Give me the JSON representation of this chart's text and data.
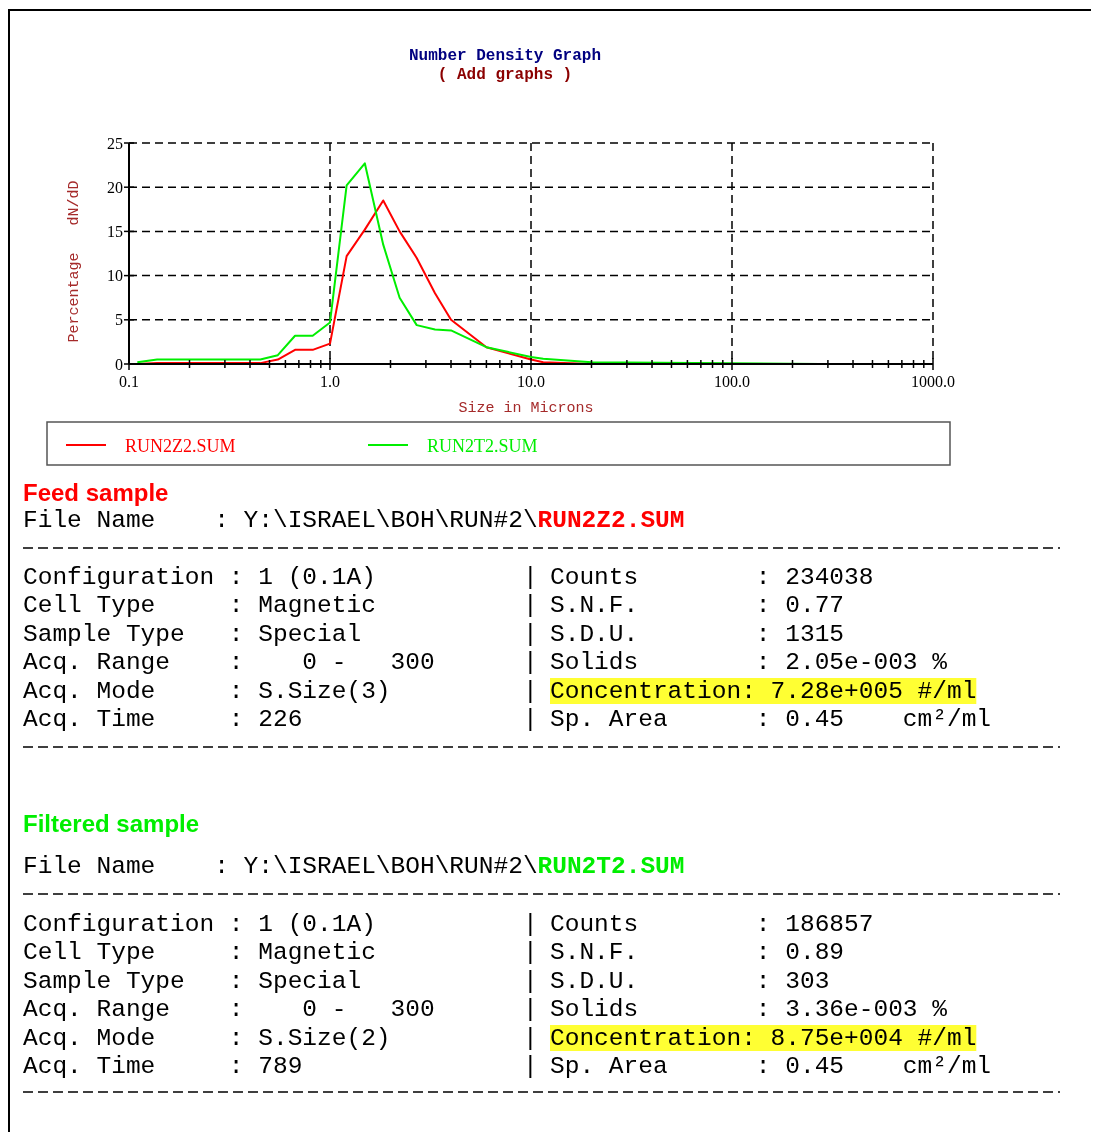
{
  "chart_data": {
    "type": "line",
    "title": "Number Density Graph",
    "subtitle": "( Add graphs )",
    "xlabel": "Size in Microns",
    "ylabel": "Percentage   dN/dD",
    "log": "x",
    "x": [
      0.11,
      0.138,
      0.45,
      0.55,
      0.67,
      0.82,
      1.0,
      1.21,
      1.49,
      1.84,
      2.22,
      2.7,
      3.33,
      4.0,
      6.0,
      10,
      11.5,
      20,
      275
    ],
    "series": [
      {
        "name": "RUN2Z2.SUM",
        "color": "#ff0000",
        "values": [
          0,
          0.1,
          0.1,
          0.5,
          1.6,
          1.6,
          2.3,
          12.2,
          15.2,
          18.5,
          15.0,
          12.0,
          8.0,
          5.0,
          1.9,
          0.5,
          0.2,
          0,
          0
        ]
      },
      {
        "name": "RUN2T2.SUM",
        "color": "#00ee00",
        "values": [
          0.2,
          0.5,
          0.5,
          1.0,
          3.2,
          3.2,
          4.7,
          20.2,
          22.7,
          13.5,
          7.5,
          4.4,
          3.9,
          3.8,
          1.9,
          0.8,
          0.6,
          0.2,
          0
        ]
      }
    ],
    "xlim": [
      0.1,
      1000
    ],
    "ylim": [
      0,
      25
    ],
    "xticks": [
      {
        "value": 0.1,
        "label": "0.1"
      },
      {
        "value": 0.2,
        "label": null
      },
      {
        "value": 0.3,
        "label": null
      },
      {
        "value": 0.4,
        "label": null
      },
      {
        "value": 0.5,
        "label": null
      },
      {
        "value": 0.6,
        "label": null
      },
      {
        "value": 0.7,
        "label": null
      },
      {
        "value": 0.8,
        "label": null
      },
      {
        "value": 0.9,
        "label": null
      },
      {
        "value": 1,
        "label": "1.0"
      },
      {
        "value": 2,
        "label": null
      },
      {
        "value": 3,
        "label": null
      },
      {
        "value": 4,
        "label": null
      },
      {
        "value": 5,
        "label": null
      },
      {
        "value": 6,
        "label": null
      },
      {
        "value": 7,
        "label": null
      },
      {
        "value": 8,
        "label": null
      },
      {
        "value": 9,
        "label": null
      },
      {
        "value": 10,
        "label": "10.0"
      },
      {
        "value": 20,
        "label": null
      },
      {
        "value": 30,
        "label": null
      },
      {
        "value": 40,
        "label": null
      },
      {
        "value": 50,
        "label": null
      },
      {
        "value": 60,
        "label": null
      },
      {
        "value": 70,
        "label": null
      },
      {
        "value": 80,
        "label": null
      },
      {
        "value": 90,
        "label": null
      },
      {
        "value": 100,
        "label": "100.0"
      },
      {
        "value": 200,
        "label": null
      },
      {
        "value": 300,
        "label": null
      },
      {
        "value": 400,
        "label": null
      },
      {
        "value": 500,
        "label": null
      },
      {
        "value": 600,
        "label": null
      },
      {
        "value": 700,
        "label": null
      },
      {
        "value": 800,
        "label": null
      },
      {
        "value": 900,
        "label": null
      },
      {
        "value": 1000,
        "label": "1000.0"
      }
    ],
    "yticks": [
      0,
      5,
      10,
      15,
      20,
      25
    ],
    "grid": true,
    "legend": "bottom",
    "line_style": "solid",
    "marker": "none",
    "annotations": [
      "Feed sample",
      "File Name    : Y:\\ISRAEL\\BOH\\RUN#2\\",
      "RUN2Z2.SUM",
      "Configuration : 1 (0.1A)          |",
      "Counts        : 234038",
      "Cell Type     : Magnetic          |",
      "S.N.F.        : 0.77",
      "Sample Type   : Special           |",
      "S.D.U.        : 1315",
      "Acq. Range    :    0 -   300      |",
      "Solids        : 2.05e-003 %",
      "Acq. Mode     : S.Size(3)         |",
      "Concentration: 7.28e+005 #/ml",
      "Acq. Time     : 226               |",
      "Sp. Area      : 0.45    cm²/ml",
      "Filtered sample",
      "File Name    : Y:\\ISRAEL\\BOH\\RUN#2\\",
      "RUN2T2.SUM",
      "Configuration : 1 (0.1A)          |",
      "Counts        : 186857",
      "Cell Type     : Magnetic          |",
      "S.N.F.        : 0.89",
      "Sample Type   : Special           |",
      "S.D.U.        : 303",
      "Acq. Range    :    0 -   300      |",
      "Solids        : 3.36e-003 %",
      "Acq. Mode     : S.Size(2)         |",
      "Concentration: 8.75e+004 #/ml",
      "Acq. Time     : 789               |",
      "Sp. Area      : 0.45    cm²/ml"
    ]
  }
}
